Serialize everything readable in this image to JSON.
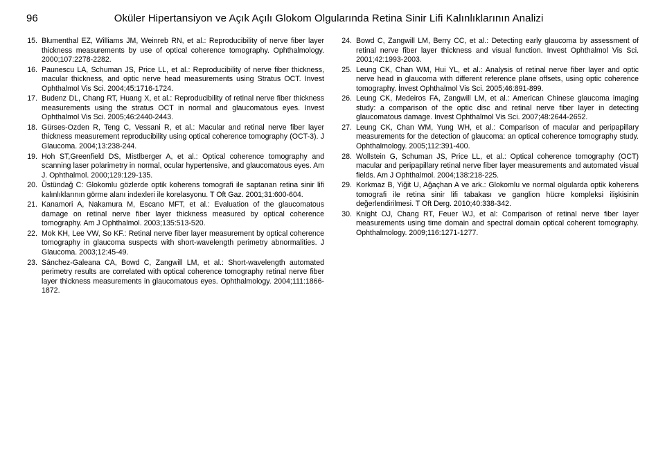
{
  "header": {
    "page_number": "96",
    "title": "Oküler Hipertansiyon ve Açık Açılı Glokom Olgularında Retina Sinir Lifi Kalınlıklarının Analizi"
  },
  "refs_left": [
    {
      "n": "15.",
      "t": "Blumenthal EZ, Williams JM, Weinreb RN, et al.: Reproducibility of nerve fiber layer thickness measurements by use of optical coherence tomography. Ophthalmology. 2000;107:2278-2282."
    },
    {
      "n": "16.",
      "t": "Paunescu LA, Schuman JS, Price LL, et al.: Reproducibility of nerve fiber thickness, macular thickness, and optic nerve head measurements using Stratus OCT. Invest Ophthalmol Vis Sci. 2004;45:1716-1724."
    },
    {
      "n": "17.",
      "t": "Budenz DL, Chang RT, Huang X, et al.: Reproducibility of retinal nerve fiber thickness measurements using the stratus OCT in normal and glaucomatous eyes. Invest Ophthalmol Vis Sci. 2005;46:2440-2443."
    },
    {
      "n": "18.",
      "t": "Gürses-Ozden R, Teng C, Vessani R, et al.: Macular and retinal nerve fiber layer thickness measurement reproducibility using optical coherence tomography (OCT-3). J Glaucoma. 2004;13:238-244."
    },
    {
      "n": "19.",
      "t": "Hoh ST,Greenfield DS, Mistlberger A, et al.: Optical coherence tomography and scanning laser polarimetry in normal, ocular hypertensive, and glaucomatous eyes. Am J. Ophthalmol. 2000;129:129-135."
    },
    {
      "n": "20.",
      "t": "Üstündağ C: Glokomlu gözlerde optik koherens tomografi ile saptanan retina sinir lifi kalınlıklarının görme alanı indexleri ile korelasyonu. T Oft Gaz. 2001;31:600-604."
    },
    {
      "n": "21.",
      "t": "Kanamori A, Nakamura M, Escano MFT, et al.: Evaluation of the glaucomatous damage on retinal nerve fiber layer thickness measured by optical coherence tomography. Am J Ophthalmol. 2003;135:513-520."
    },
    {
      "n": "22.",
      "t": "Mok KH, Lee VW, So KF.: Retinal nerve fiber layer measurement by optical coherence tomography in glaucoma suspects with short-wavelength perimetry abnormalities. J Glaucoma. 2003;12:45-49."
    },
    {
      "n": "23.",
      "t": "Sánchez-Galeana CA, Bowd C, Zangwill LM, et al.: Short-wavelength automated perimetry results are correlated with optical coherence tomography retinal nerve fiber layer thickness measurements in glaucomatous eyes. Ophthalmology. 2004;111:1866-1872."
    }
  ],
  "refs_right": [
    {
      "n": "24.",
      "t": "Bowd C, Zangwill LM, Berry CC, et al.: Detecting early glaucoma by assessment of retinal nerve fiber layer thickness and visual function. Invest Ophthalmol Vis Sci. 2001;42:1993-2003."
    },
    {
      "n": "25.",
      "t": "Leung CK, Chan WM, Hui YL, et al.: Analysis of retinal nerve fiber layer and optic nerve head in glaucoma with different reference plane offsets, using optic coherence tomography. İnvest Ophthalmol Vis Sci. 2005;46:891-899."
    },
    {
      "n": "26.",
      "t": "Leung CK, Medeiros FA, Zangwill LM, et al.: American Chinese glaucoma imaging study: a comparison of the optic disc and retinal nerve fiber layer in detecting glaucomatous damage. Invest Ophthalmol Vis Sci. 2007;48:2644-2652."
    },
    {
      "n": "27.",
      "t": "Leung CK, Chan WM, Yung WH, et al.: Comparison of macular and peripapillary measurements for the detection of glaucoma: an optical coherence tomography study. Ophthalmology. 2005;112:391-400."
    },
    {
      "n": "28.",
      "t": "Wollstein G, Schuman JS, Price LL, et al.: Optical coherence tomography (OCT) macular and peripapillary retinal nerve fiber layer measurements and automated visual fields. Am J Ophthalmol. 2004;138:218-225."
    },
    {
      "n": "29.",
      "t": "Korkmaz B, Yiğit U, Ağaçhan A ve ark.: Glokomlu ve normal olgularda optik koherens tomografi ile retina sinir lifi tabakası ve ganglion hücre kompleksi ilişkisinin değerlendirilmesi. T Oft Derg. 2010;40:338-342."
    },
    {
      "n": "30.",
      "t": "Knight OJ, Chang RT, Feuer WJ, et al: Comparison of retinal nerve fiber layer measurements using time domain and spectral domain optical coherent tomography. Ophthalmology. 2009;116:1271-1277."
    }
  ]
}
